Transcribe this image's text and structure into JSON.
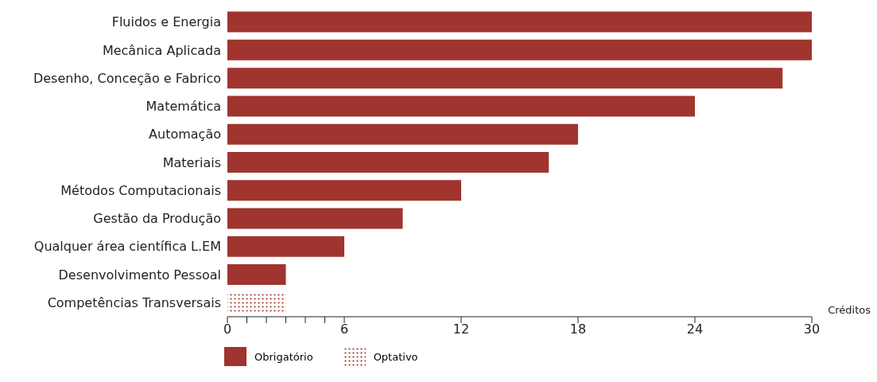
{
  "chart_data": {
    "type": "bar",
    "orientation": "horizontal",
    "stacked": true,
    "xlabel": "Créditos",
    "categories": [
      "Fluidos e Energia",
      "Mecânica Aplicada",
      "Desenho, Conceção e Fabrico",
      "Matemática",
      "Automação",
      "Materiais",
      "Métodos Computacionais",
      "Gestão da Produção",
      "Qualquer área científica L.EM",
      "Desenvolvimento Pessoal",
      "Competências Transversais"
    ],
    "series": [
      {
        "name": "Obrigatório",
        "color": "#a0342e",
        "values": [
          30,
          30,
          28.5,
          24,
          18,
          16.5,
          12,
          9,
          6,
          3,
          null
        ]
      },
      {
        "name": "Optativo",
        "color": "#a0342e",
        "line_style": "dotted",
        "values": [
          null,
          null,
          null,
          null,
          null,
          null,
          null,
          null,
          null,
          null,
          3
        ]
      }
    ],
    "xlim": [
      0,
      30
    ],
    "xticks": [
      0,
      {
        "value": 1,
        "label": null
      },
      {
        "value": 2,
        "label": null
      },
      {
        "value": 3,
        "label": null
      },
      {
        "value": 4,
        "label": null
      },
      {
        "value": 5,
        "label": null
      },
      6,
      12,
      18,
      24,
      30
    ],
    "grid": false,
    "legend": "bottom left"
  }
}
